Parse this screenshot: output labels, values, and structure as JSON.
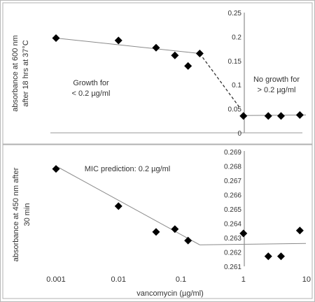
{
  "chart_data": [
    {
      "type": "scatter",
      "x_scale": "log",
      "xlim": [
        0.001,
        10
      ],
      "ylim": [
        0,
        0.25
      ],
      "y_ticks": [
        "0",
        "0.05",
        "0.1",
        "0.15",
        "0.2",
        "0.25"
      ],
      "ylabel_line1": "absorbance at 600 nm",
      "ylabel_line2": "after 18 hrs at 37°C",
      "points": [
        {
          "x": 0.001,
          "y": 0.197
        },
        {
          "x": 0.01,
          "y": 0.192
        },
        {
          "x": 0.04,
          "y": 0.177
        },
        {
          "x": 0.08,
          "y": 0.161
        },
        {
          "x": 0.13,
          "y": 0.139
        },
        {
          "x": 0.2,
          "y": 0.165
        },
        {
          "x": 1,
          "y": 0.035
        },
        {
          "x": 2.5,
          "y": 0.035
        },
        {
          "x": 4,
          "y": 0.035
        },
        {
          "x": 8,
          "y": 0.037
        }
      ],
      "lines": [
        {
          "style": "solid",
          "x": [
            0.001,
            0.2
          ],
          "y": [
            0.197,
            0.165
          ]
        },
        {
          "style": "dashed",
          "x": [
            0.2,
            0.9
          ],
          "y": [
            0.165,
            0.05
          ]
        },
        {
          "style": "solid",
          "x": [
            0.9,
            10
          ],
          "y": [
            0.036,
            0.037
          ]
        }
      ],
      "annotations": [
        {
          "line1": "Growth for",
          "line2": "< 0.2 µg/ml"
        },
        {
          "line1": "No growth for",
          "line2": "> 0.2 µg/ml"
        }
      ]
    },
    {
      "type": "scatter",
      "x_scale": "log",
      "xlim": [
        0.001,
        10
      ],
      "ylim": [
        0.261,
        0.269
      ],
      "x_ticks": [
        "0.001",
        "0.01",
        "0.1",
        "1",
        "10"
      ],
      "y_ticks": [
        "0.261",
        "0.262",
        "0.263",
        "0.264",
        "0.265",
        "0.266",
        "0.267",
        "0.268",
        "0.269"
      ],
      "xlabel": "vancomycin (µg/ml)",
      "ylabel_line1": "absorbance at 450 nm after",
      "ylabel_line2": "30 min",
      "points": [
        {
          "x": 0.001,
          "y": 0.2678
        },
        {
          "x": 0.01,
          "y": 0.2652
        },
        {
          "x": 0.04,
          "y": 0.2634
        },
        {
          "x": 0.08,
          "y": 0.2636
        },
        {
          "x": 0.13,
          "y": 0.2628
        },
        {
          "x": 1,
          "y": 0.2633
        },
        {
          "x": 2.5,
          "y": 0.2617
        },
        {
          "x": 4,
          "y": 0.2617
        },
        {
          "x": 8,
          "y": 0.2635
        }
      ],
      "lines": [
        {
          "style": "solid",
          "x": [
            0.001,
            0.2
          ],
          "y": [
            0.268,
            0.2625
          ]
        },
        {
          "style": "solid",
          "x": [
            0.2,
            10
          ],
          "y": [
            0.2625,
            0.2626
          ]
        }
      ],
      "annotations": [
        {
          "line1": "MIC prediction:  0.2 µg/ml",
          "line2": ""
        }
      ]
    }
  ]
}
